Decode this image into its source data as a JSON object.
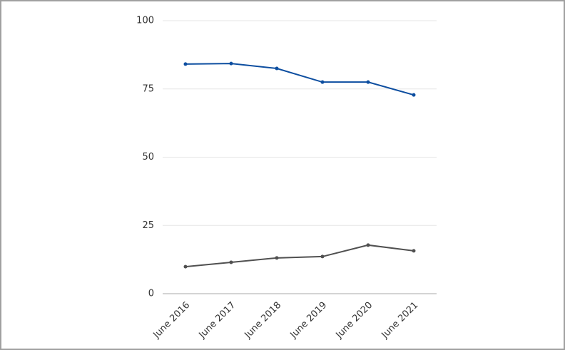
{
  "chart_data": {
    "type": "line",
    "categories": [
      "June 2016",
      "June 2017",
      "June 2018",
      "June 2019",
      "June 2020",
      "June 2021"
    ],
    "series": [
      {
        "color": "#0d4ea0",
        "values": [
          84.1,
          84.3,
          82.5,
          77.5,
          77.5,
          72.8
        ]
      },
      {
        "color": "#505050",
        "values": [
          9.9,
          11.5,
          13.1,
          13.6,
          17.8,
          15.7
        ]
      }
    ],
    "ylim": [
      0,
      100
    ],
    "yticks": [
      0,
      25,
      50,
      75,
      100
    ],
    "grid": true
  }
}
